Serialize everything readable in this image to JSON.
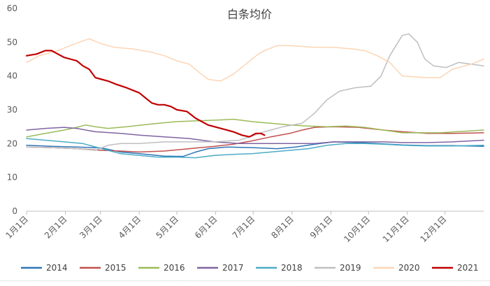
{
  "chart_data": {
    "type": "line",
    "title": "白条均价",
    "xlabel": "",
    "ylabel": "",
    "ylim": [
      0,
      60
    ],
    "yticks": [
      0,
      10,
      20,
      30,
      40,
      50,
      60
    ],
    "x_domain": [
      0,
      365
    ],
    "x_ticks": [
      {
        "label": "1月1日",
        "x": 0
      },
      {
        "label": "2月1日",
        "x": 31
      },
      {
        "label": "3月1日",
        "x": 59
      },
      {
        "label": "4月1日",
        "x": 90
      },
      {
        "label": "5月1日",
        "x": 120
      },
      {
        "label": "6月1日",
        "x": 151
      },
      {
        "label": "7月1日",
        "x": 181
      },
      {
        "label": "8月1日",
        "x": 212
      },
      {
        "label": "9月1日",
        "x": 243
      },
      {
        "label": "10月1日",
        "x": 273
      },
      {
        "label": "11月1日",
        "x": 304
      },
      {
        "label": "12月1日",
        "x": 334
      }
    ],
    "grid": false,
    "legend_position": "bottom",
    "series": [
      {
        "name": "2014",
        "color": "#2E75B6",
        "width": 1.5,
        "x": [
          0,
          20,
          40,
          60,
          75,
          90,
          110,
          125,
          135,
          145,
          160,
          180,
          200,
          215,
          230,
          245,
          265,
          280,
          300,
          320,
          340,
          365
        ],
        "y": [
          19.5,
          19.2,
          19.0,
          18.7,
          17.5,
          17.0,
          16.3,
          16.2,
          17.5,
          18.5,
          19.0,
          18.8,
          18.5,
          19.0,
          19.8,
          20.5,
          20.3,
          20.0,
          19.6,
          19.4,
          19.4,
          19.2
        ]
      },
      {
        "name": "2015",
        "color": "#C0504D",
        "width": 1.5,
        "x": [
          0,
          20,
          40,
          60,
          75,
          90,
          110,
          130,
          150,
          165,
          180,
          195,
          210,
          220,
          230,
          245,
          265,
          285,
          300,
          320,
          340,
          365
        ],
        "y": [
          19.0,
          18.8,
          18.5,
          18.0,
          17.8,
          17.5,
          17.8,
          18.5,
          19.2,
          19.8,
          20.8,
          22.0,
          23.0,
          24.0,
          24.8,
          25.0,
          24.8,
          24.0,
          23.5,
          23.0,
          23.0,
          23.2
        ]
      },
      {
        "name": "2016",
        "color": "#9BBB59",
        "width": 1.5,
        "x": [
          0,
          15,
          30,
          40,
          47,
          55,
          65,
          80,
          100,
          120,
          140,
          155,
          165,
          180,
          195,
          210,
          225,
          240,
          255,
          270,
          285,
          300,
          330,
          365
        ],
        "y": [
          22.0,
          23.0,
          24.0,
          24.8,
          25.5,
          25.0,
          24.5,
          25.0,
          25.8,
          26.5,
          26.8,
          27.0,
          27.2,
          26.5,
          26.0,
          25.5,
          25.2,
          25.0,
          25.2,
          24.8,
          24.0,
          23.2,
          23.2,
          24.0
        ]
      },
      {
        "name": "2017",
        "color": "#8064A2",
        "width": 1.5,
        "x": [
          0,
          15,
          30,
          40,
          55,
          75,
          90,
          110,
          130,
          150,
          170,
          185,
          200,
          215,
          230,
          245,
          265,
          285,
          300,
          320,
          340,
          365
        ],
        "y": [
          24.0,
          24.5,
          24.8,
          24.5,
          23.5,
          23.0,
          22.5,
          22.0,
          21.5,
          20.5,
          20.0,
          20.0,
          20.0,
          20.0,
          20.0,
          20.5,
          20.5,
          20.5,
          20.3,
          20.3,
          20.5,
          21.0
        ]
      },
      {
        "name": "2018",
        "color": "#4BACC6",
        "width": 1.5,
        "x": [
          0,
          15,
          30,
          45,
          60,
          75,
          90,
          105,
          120,
          135,
          150,
          165,
          180,
          195,
          210,
          225,
          240,
          255,
          270,
          285,
          300,
          320,
          340,
          365
        ],
        "y": [
          21.5,
          21.0,
          20.5,
          20.0,
          18.5,
          17.0,
          16.5,
          16.0,
          16.0,
          15.8,
          16.5,
          16.8,
          17.0,
          17.5,
          18.0,
          18.5,
          19.5,
          20.0,
          20.0,
          19.8,
          19.5,
          19.3,
          19.3,
          19.5
        ]
      },
      {
        "name": "2019",
        "color": "#BFBFBF",
        "width": 1.5,
        "x": [
          0,
          20,
          40,
          55,
          65,
          75,
          90,
          110,
          130,
          150,
          170,
          190,
          205,
          220,
          230,
          240,
          250,
          262,
          275,
          283,
          290,
          300,
          305,
          312,
          318,
          325,
          335,
          345,
          365
        ],
        "y": [
          19.0,
          18.8,
          18.5,
          18.0,
          19.5,
          20.0,
          20.0,
          20.5,
          20.5,
          20.5,
          21.0,
          23.5,
          25.0,
          26.0,
          29.0,
          33.0,
          35.5,
          36.5,
          37.0,
          40.0,
          46.0,
          52.0,
          52.5,
          50.0,
          45.0,
          43.0,
          42.5,
          44.0,
          43.0
        ]
      },
      {
        "name": "2020",
        "color": "#FCD5B4",
        "width": 1.5,
        "x": [
          0,
          10,
          25,
          35,
          42,
          50,
          60,
          70,
          85,
          100,
          110,
          120,
          130,
          138,
          145,
          155,
          165,
          175,
          185,
          190,
          200,
          210,
          230,
          245,
          260,
          270,
          280,
          290,
          300,
          320,
          330,
          340,
          355,
          365
        ],
        "y": [
          44.0,
          46.0,
          47.5,
          49.0,
          50.0,
          51.0,
          49.5,
          48.5,
          48.0,
          47.0,
          46.0,
          44.5,
          43.5,
          41.0,
          39.0,
          38.5,
          40.5,
          43.5,
          46.5,
          47.5,
          49.0,
          49.0,
          48.5,
          48.5,
          48.0,
          47.5,
          46.0,
          44.0,
          40.0,
          39.5,
          39.5,
          42.0,
          43.5,
          45.0
        ]
      },
      {
        "name": "2021",
        "color": "#C00000",
        "width": 2.2,
        "x": [
          0,
          8,
          15,
          20,
          25,
          30,
          35,
          40,
          45,
          50,
          55,
          60,
          65,
          72,
          80,
          90,
          95,
          100,
          105,
          110,
          115,
          120,
          128,
          135,
          145,
          155,
          165,
          172,
          178,
          183,
          187,
          190
        ],
        "y": [
          46.0,
          46.5,
          47.5,
          47.5,
          46.5,
          45.5,
          45.0,
          44.5,
          43.0,
          42.0,
          39.5,
          39.0,
          38.5,
          37.5,
          36.5,
          35.0,
          33.5,
          32.0,
          31.5,
          31.5,
          31.0,
          30.0,
          29.5,
          27.5,
          25.5,
          24.5,
          23.5,
          22.5,
          22.0,
          23.0,
          23.0,
          22.5
        ]
      }
    ]
  }
}
